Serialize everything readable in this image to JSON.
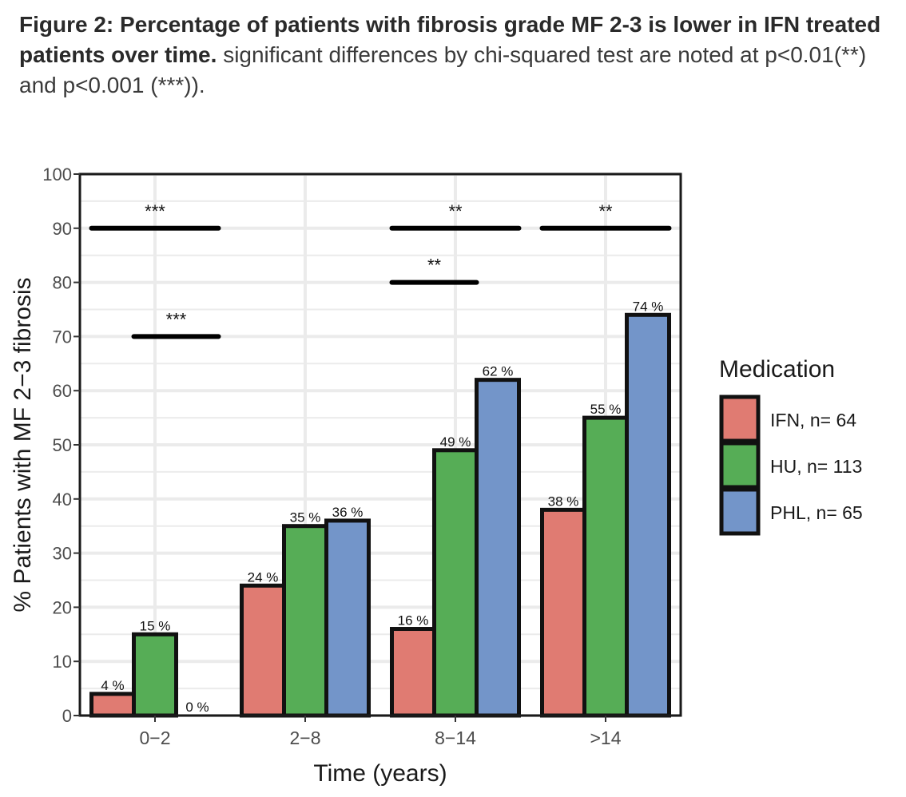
{
  "caption": {
    "title": "Figure 2: Percentage of patients with fibrosis grade MF 2-3 is lower in IFN treated patients over time.",
    "text": "significant differences by chi-squared test are noted at p<0.01(**) and p<0.001 (***))."
  },
  "chart_data": {
    "type": "bar",
    "title": "",
    "xlabel": "Time (years)",
    "ylabel": "% Patients with MF 2−3 fibrosis",
    "ylim": [
      0,
      100
    ],
    "yticks": [
      0,
      10,
      20,
      30,
      40,
      50,
      60,
      70,
      80,
      90,
      100
    ],
    "categories": [
      "0−2",
      "2−8",
      "8−14",
      ">14"
    ],
    "series": [
      {
        "name": "IFN, n= 64",
        "color": "#e07b72",
        "values": [
          4,
          24,
          16,
          38
        ],
        "labels": [
          "4 %",
          "24 %",
          "16 %",
          "38 %"
        ]
      },
      {
        "name": "HU, n= 113",
        "color": "#56ad56",
        "values": [
          15,
          35,
          49,
          55
        ],
        "labels": [
          "15 %",
          "35 %",
          "49 %",
          "55 %"
        ]
      },
      {
        "name": "PHL, n= 65",
        "color": "#7395c9",
        "values": [
          0,
          36,
          62,
          74
        ],
        "labels": [
          "0 %",
          "36 %",
          "62 %",
          "74 %"
        ]
      }
    ],
    "legend": {
      "title": "Medication",
      "position": "right"
    },
    "grid": true,
    "significance": [
      {
        "category": 0,
        "from": 0,
        "to": 2,
        "y": 90,
        "label": "***"
      },
      {
        "category": 0,
        "from": 1,
        "to": 2,
        "y": 70,
        "label": "***"
      },
      {
        "category": 2,
        "from": 0,
        "to": 2,
        "y": 90,
        "label": "**"
      },
      {
        "category": 2,
        "from": 0,
        "to": 1,
        "y": 80,
        "label": "**"
      },
      {
        "category": 3,
        "from": 0,
        "to": 2,
        "y": 90,
        "label": "**"
      }
    ]
  }
}
